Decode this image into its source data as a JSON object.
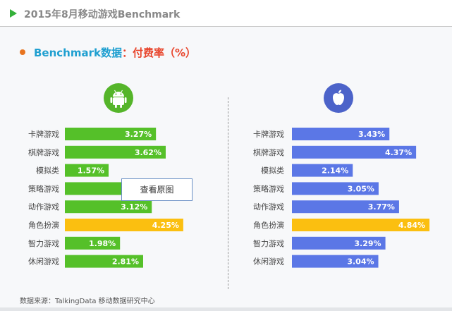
{
  "header": {
    "title": "2015年8月移动游戏Benchmark"
  },
  "subtitle": {
    "part_a": "Benchmark数据",
    "part_b": "：付费率（%）"
  },
  "tooltip": {
    "label": "查看原图"
  },
  "footer": {
    "source": "数据来源：TalkingData 移动数据研究中心"
  },
  "colors": {
    "android": "#55c029",
    "ios": "#5b77e6",
    "highlight": "#fbbf10"
  },
  "chart_data": [
    {
      "type": "bar",
      "platform_icon": "android-icon",
      "categories": [
        "卡牌游戏",
        "棋牌游戏",
        "模拟类",
        "策略游戏",
        "动作游戏",
        "角色扮演",
        "智力游戏",
        "休闲游戏"
      ],
      "values": [
        3.27,
        3.62,
        1.57,
        2.75,
        3.12,
        4.25,
        1.98,
        2.81
      ],
      "value_labels": [
        "3.27%",
        "3.62%",
        "1.57%",
        "",
        "3.12%",
        "4.25%",
        "1.98%",
        "2.81%"
      ],
      "highlight_index": 5,
      "orientation": "horizontal"
    },
    {
      "type": "bar",
      "platform_icon": "apple-icon",
      "categories": [
        "卡牌游戏",
        "棋牌游戏",
        "模拟类",
        "策略游戏",
        "动作游戏",
        "角色扮演",
        "智力游戏",
        "休闲游戏"
      ],
      "values": [
        3.43,
        4.37,
        2.14,
        3.05,
        3.77,
        4.84,
        3.29,
        3.04
      ],
      "value_labels": [
        "3.43%",
        "4.37%",
        "2.14%",
        "3.05%",
        "3.77%",
        "4.84%",
        "3.29%",
        "3.04%"
      ],
      "highlight_index": 5,
      "orientation": "horizontal"
    }
  ]
}
